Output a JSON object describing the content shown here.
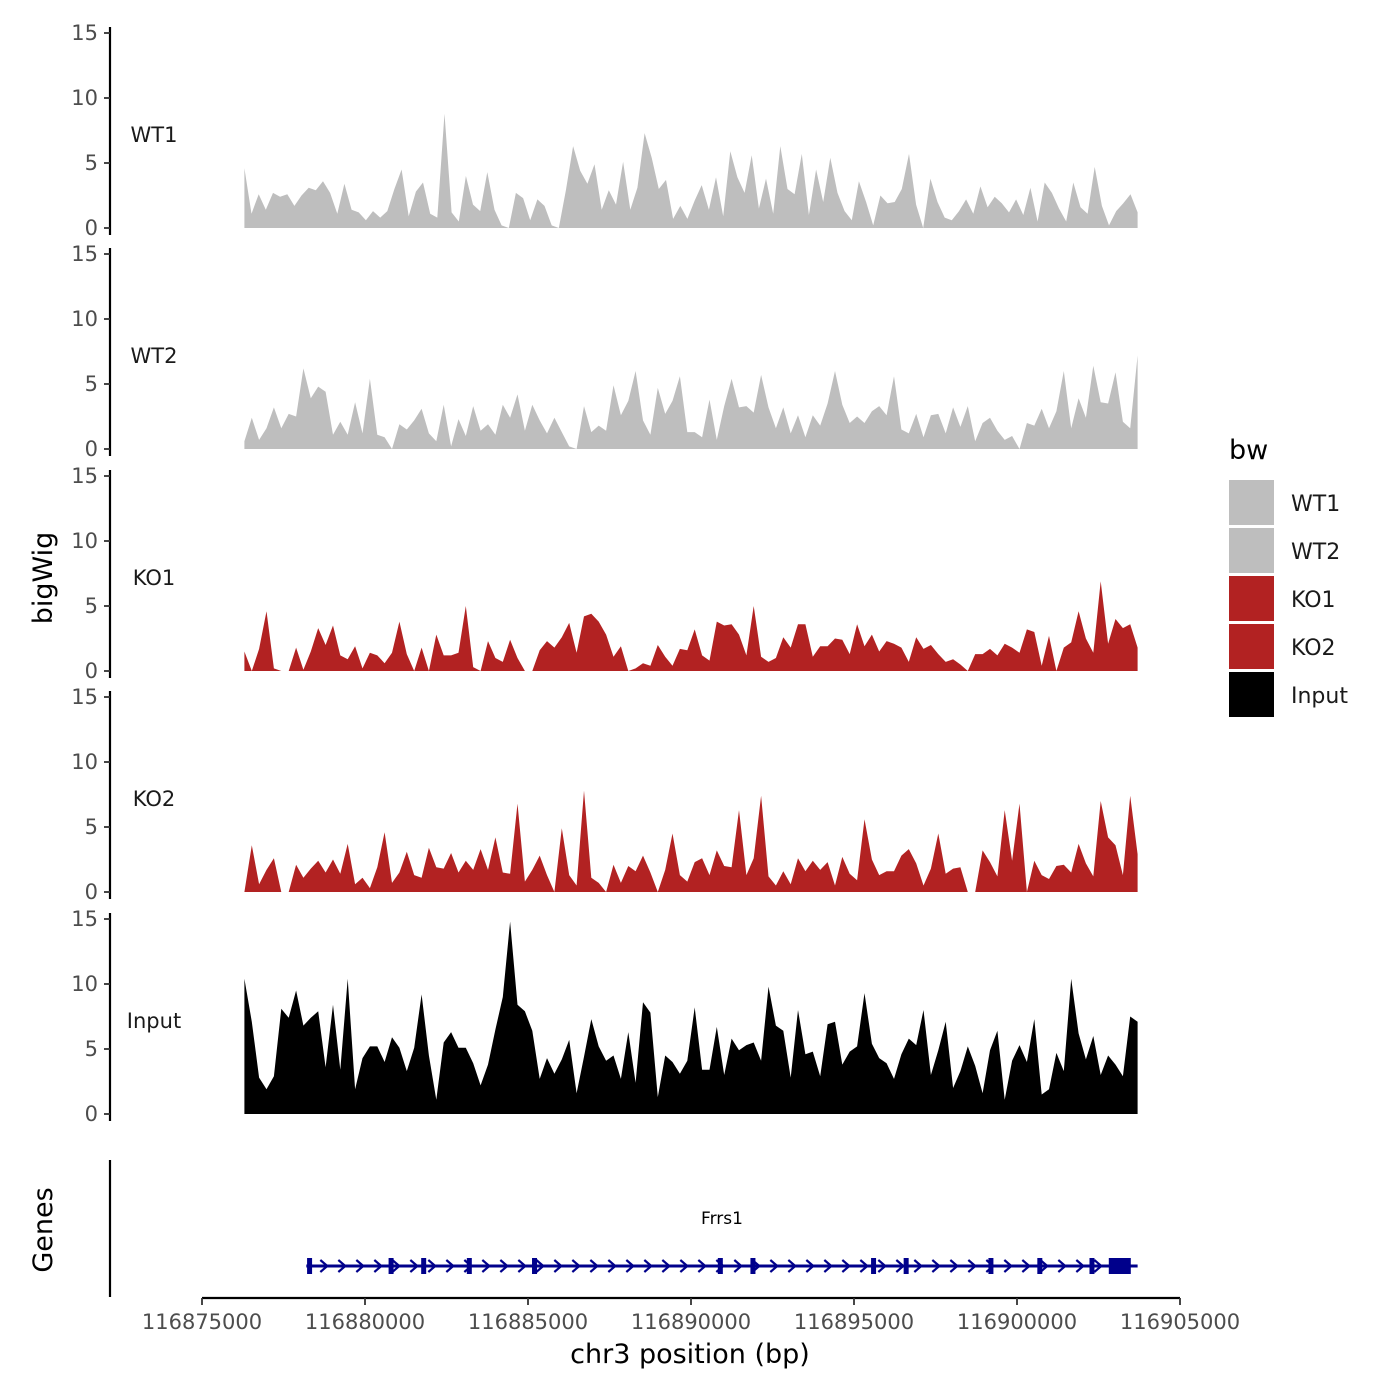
{
  "chart_data": {
    "type": "area",
    "title": "",
    "chromosome": "chr3",
    "xlabel": "chr3 position (bp)",
    "ylabel": "bigWig",
    "genes_label": "Genes",
    "xlim": [
      116875000,
      116905000
    ],
    "x_ticks": [
      116875000,
      116880000,
      116885000,
      116890000,
      116895000,
      116900000,
      116905000
    ],
    "x_tick_labels": [
      "116875000",
      "116880000",
      "116885000",
      "116890000",
      "116895000",
      "116900000",
      "116905000"
    ],
    "ylim": [
      0,
      15
    ],
    "y_ticks": [
      0,
      5,
      10,
      15
    ],
    "y_tick_labels": [
      "0",
      "5",
      "10",
      "15"
    ],
    "data_range": [
      116876300,
      116903700
    ],
    "legend": {
      "title": "bw",
      "position": "right",
      "entries": [
        {
          "label": "WT1",
          "color": "#bebebe"
        },
        {
          "label": "WT2",
          "color": "#bebebe"
        },
        {
          "label": "KO1",
          "color": "#b22222"
        },
        {
          "label": "KO2",
          "color": "#b22222"
        },
        {
          "label": "Input",
          "color": "#000000"
        }
      ]
    },
    "series": [
      {
        "name": "WT1",
        "color": "#bebebe",
        "values": [
          4.6,
          1.1,
          2.6,
          1.4,
          2.7,
          2.4,
          2.6,
          1.7,
          2.5,
          3.1,
          2.9,
          3.6,
          2.7,
          1.1,
          3.4,
          1.4,
          1.2,
          0.6,
          1.3,
          0.8,
          1.3,
          3.0,
          4.5,
          0.9,
          2.8,
          3.5,
          1.1,
          0.8,
          8.8,
          1.2,
          0.5,
          4.0,
          1.8,
          1.3,
          4.3,
          1.4,
          0.2,
          0.0,
          2.7,
          2.3,
          0.6,
          2.2,
          1.7,
          0.2,
          0.0,
          2.9,
          6.3,
          4.4,
          3.4,
          4.9,
          1.4,
          2.9,
          1.8,
          5.1,
          1.4,
          3.1,
          7.3,
          5.4,
          3.0,
          3.7,
          0.7,
          1.7,
          0.7,
          2.1,
          3.3,
          1.4,
          3.9,
          0.9,
          5.9,
          3.9,
          2.7,
          5.6,
          1.5,
          3.8,
          1.1,
          6.3,
          3.0,
          2.6,
          5.7,
          1.0,
          4.5,
          2.0,
          5.4,
          2.7,
          1.3,
          0.6,
          3.6,
          2.0,
          0.2,
          2.5,
          1.9,
          2.0,
          3.0,
          5.7,
          1.8,
          0.0,
          3.8,
          2.0,
          0.8,
          0.6,
          1.3,
          2.2,
          1.1,
          3.2,
          1.6,
          2.4,
          1.9,
          1.2,
          2.2,
          1.0,
          3.1,
          0.5,
          3.5,
          2.7,
          1.5,
          0.5,
          3.5,
          1.6,
          1.1,
          4.7,
          1.7,
          0.2,
          1.3,
          1.9,
          2.6,
          1.2
        ]
      },
      {
        "name": "WT2",
        "color": "#bebebe",
        "values": [
          0.6,
          2.4,
          0.7,
          1.6,
          3.2,
          1.6,
          2.7,
          2.5,
          6.2,
          3.9,
          4.8,
          4.4,
          1.1,
          2.1,
          1.1,
          3.6,
          1.2,
          5.4,
          1.1,
          0.9,
          0.0,
          1.9,
          1.5,
          2.2,
          3.1,
          1.2,
          0.6,
          3.4,
          0.2,
          2.3,
          1.0,
          3.3,
          1.4,
          1.9,
          1.1,
          3.4,
          2.4,
          4.2,
          1.4,
          3.4,
          2.2,
          1.2,
          2.4,
          1.3,
          0.2,
          0.0,
          3.3,
          1.3,
          1.8,
          1.4,
          4.9,
          2.6,
          3.7,
          6.0,
          2.2,
          1.1,
          4.7,
          2.7,
          3.7,
          5.6,
          1.3,
          1.3,
          0.9,
          3.8,
          0.7,
          3.3,
          5.4,
          3.2,
          3.3,
          2.8,
          5.7,
          3.2,
          1.6,
          3.2,
          1.2,
          2.6,
          0.9,
          2.6,
          1.8,
          3.5,
          6.0,
          3.4,
          2.0,
          2.5,
          2.0,
          2.9,
          3.3,
          2.6,
          5.6,
          1.5,
          1.2,
          2.7,
          0.9,
          2.6,
          2.7,
          1.2,
          3.2,
          1.7,
          3.3,
          0.6,
          2.0,
          2.4,
          1.4,
          0.7,
          1.0,
          0.0,
          2.0,
          1.8,
          3.1,
          1.6,
          2.9,
          6.0,
          1.6,
          3.9,
          2.4,
          6.4,
          3.6,
          3.5,
          5.9,
          2.1,
          1.6,
          7.2
        ]
      },
      {
        "name": "KO1",
        "color": "#b22222",
        "values": [
          1.5,
          0.0,
          1.7,
          4.6,
          0.2,
          0.0,
          0.0,
          1.8,
          0.1,
          1.5,
          3.3,
          2.0,
          3.5,
          1.2,
          0.9,
          1.9,
          0.2,
          1.4,
          1.2,
          0.6,
          1.4,
          3.8,
          1.3,
          0.0,
          1.8,
          0.0,
          2.8,
          1.2,
          1.2,
          1.4,
          5.0,
          0.3,
          0.0,
          2.3,
          1.0,
          0.7,
          2.4,
          1.0,
          0.0,
          0.0,
          1.6,
          2.3,
          1.8,
          2.6,
          3.7,
          1.4,
          4.2,
          4.4,
          3.8,
          2.8,
          1.1,
          1.9,
          0.0,
          0.2,
          0.6,
          0.4,
          2.0,
          1.1,
          0.4,
          1.7,
          1.6,
          3.2,
          1.2,
          0.8,
          3.8,
          3.5,
          3.6,
          2.8,
          1.2,
          5.0,
          1.1,
          0.7,
          1.0,
          2.6,
          1.8,
          3.6,
          3.6,
          1.1,
          1.9,
          1.9,
          2.5,
          2.4,
          1.3,
          3.6,
          1.9,
          2.8,
          1.5,
          2.3,
          2.1,
          1.8,
          0.7,
          2.6,
          1.7,
          2.0,
          1.3,
          0.7,
          0.9,
          0.5,
          0.0,
          1.3,
          1.3,
          1.7,
          1.2,
          2.1,
          1.8,
          1.4,
          3.2,
          3.0,
          0.4,
          2.7,
          0.0,
          1.8,
          2.2,
          4.6,
          2.5,
          1.4,
          6.9,
          2.1,
          4.0,
          3.3,
          3.6,
          1.8
        ]
      },
      {
        "name": "KO2",
        "color": "#b22222",
        "values": [
          0.0,
          3.6,
          0.6,
          1.7,
          2.6,
          0.0,
          0.0,
          2.1,
          1.1,
          1.8,
          2.4,
          1.5,
          2.5,
          1.4,
          3.7,
          0.6,
          1.1,
          0.3,
          1.9,
          4.6,
          0.7,
          1.5,
          3.1,
          1.3,
          1.1,
          3.4,
          1.9,
          1.8,
          3.0,
          1.5,
          2.4,
          1.7,
          3.3,
          1.7,
          4.2,
          1.5,
          1.4,
          6.8,
          0.8,
          1.7,
          2.8,
          1.3,
          0.0,
          4.9,
          1.3,
          0.5,
          7.8,
          1.1,
          0.7,
          0.0,
          2.1,
          0.7,
          2.0,
          1.6,
          2.8,
          1.5,
          0.0,
          1.7,
          4.5,
          1.3,
          0.8,
          2.3,
          2.6,
          1.3,
          3.2,
          2.0,
          1.9,
          6.3,
          1.3,
          2.6,
          7.4,
          1.2,
          0.5,
          1.6,
          0.6,
          2.6,
          1.6,
          2.4,
          1.7,
          2.3,
          0.5,
          2.7,
          1.4,
          0.9,
          5.6,
          2.5,
          1.3,
          1.6,
          1.6,
          2.8,
          3.3,
          2.2,
          0.5,
          1.8,
          4.5,
          1.4,
          1.8,
          1.9,
          0.0,
          0.0,
          3.2,
          2.3,
          1.2,
          6.3,
          2.4,
          6.8,
          0.0,
          2.4,
          1.3,
          1.0,
          2.0,
          2.1,
          1.5,
          3.7,
          2.2,
          1.2,
          7.0,
          4.2,
          3.6,
          1.3,
          7.4,
          2.9
        ]
      },
      {
        "name": "Input",
        "color": "#000000",
        "values": [
          10.4,
          7.1,
          2.8,
          1.9,
          2.9,
          8.1,
          7.4,
          9.5,
          6.8,
          7.4,
          7.9,
          3.6,
          8.4,
          3.4,
          10.4,
          1.9,
          4.3,
          5.2,
          5.2,
          4.0,
          5.9,
          5.1,
          3.3,
          5.1,
          9.2,
          4.5,
          1.1,
          5.5,
          6.3,
          5.1,
          5.1,
          3.9,
          2.2,
          3.8,
          6.5,
          9.0,
          14.8,
          8.4,
          7.9,
          6.4,
          2.7,
          4.3,
          3.1,
          4.2,
          5.7,
          1.6,
          4.4,
          7.3,
          5.2,
          4.1,
          4.5,
          2.7,
          6.3,
          2.4,
          8.6,
          7.8,
          1.3,
          4.5,
          4.0,
          3.1,
          4.1,
          8.2,
          3.4,
          3.4,
          6.7,
          3.0,
          5.8,
          4.9,
          5.3,
          5.5,
          4.1,
          9.8,
          6.8,
          6.4,
          2.8,
          8.0,
          4.6,
          4.8,
          2.9,
          6.9,
          7.1,
          3.8,
          4.8,
          5.2,
          9.3,
          5.4,
          4.3,
          3.9,
          2.7,
          4.6,
          5.8,
          5.3,
          8.0,
          3.0,
          4.9,
          7.1,
          2.0,
          3.3,
          5.2,
          3.7,
          1.6,
          4.9,
          6.4,
          1.1,
          4.1,
          5.3,
          4.0,
          7.3,
          1.5,
          1.9,
          4.7,
          3.3,
          10.4,
          6.2,
          4.2,
          6.0,
          3.0,
          4.5,
          3.8,
          2.9,
          7.5,
          7.1
        ]
      }
    ],
    "gene": {
      "name": "Frrs1",
      "color": "#00008b",
      "start": 116878200,
      "end": 116903700,
      "strand": "+",
      "exons": [
        116878300,
        116880800,
        116881800,
        116883200,
        116885200,
        116890900,
        116891900,
        116895600,
        116896600,
        116899200,
        116900700,
        116902300,
        116903000
      ]
    }
  }
}
